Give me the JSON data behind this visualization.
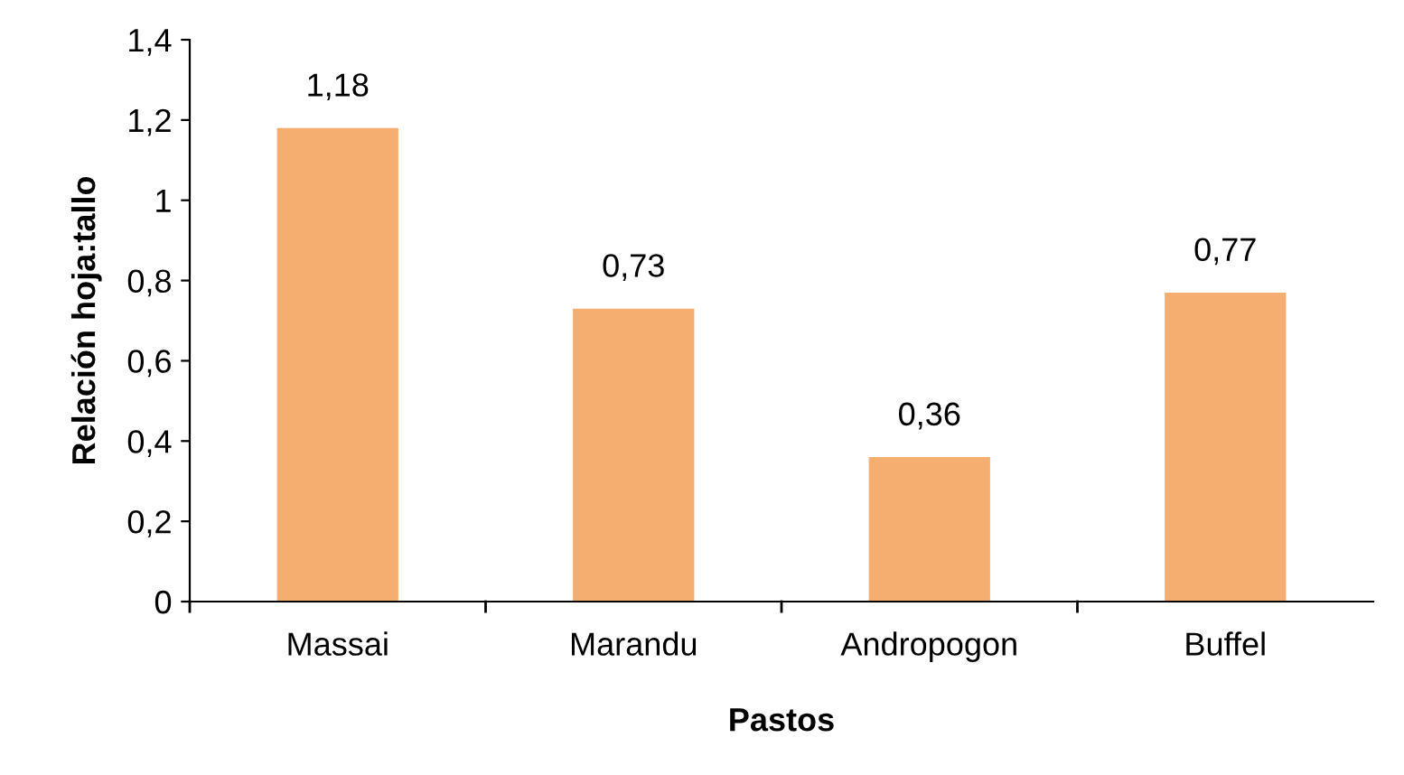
{
  "chart_data": {
    "type": "bar",
    "xlabel": "Pastos",
    "ylabel": "Relación hoja:tallo",
    "categories": [
      "Massai",
      "Marandu",
      "Andropogon",
      "Buffel"
    ],
    "values": [
      1.18,
      0.73,
      0.36,
      0.77
    ],
    "value_labels": [
      "1,18",
      "0,73",
      "0,36",
      "0,77"
    ],
    "color": "#f5ae6f",
    "ylim": [
      0,
      1.4
    ],
    "yticks": [
      0,
      {
        "value": 0.2,
        "label": "0,2"
      },
      {
        "value": 0.4,
        "label": "0,4"
      },
      {
        "value": 0.6,
        "label": "0,6"
      },
      {
        "value": 0.8,
        "label": "0,8"
      },
      1,
      {
        "value": 1.2,
        "label": "1,2"
      },
      {
        "value": 1.4,
        "label": "1,4"
      }
    ],
    "grid": false,
    "legend": false
  }
}
